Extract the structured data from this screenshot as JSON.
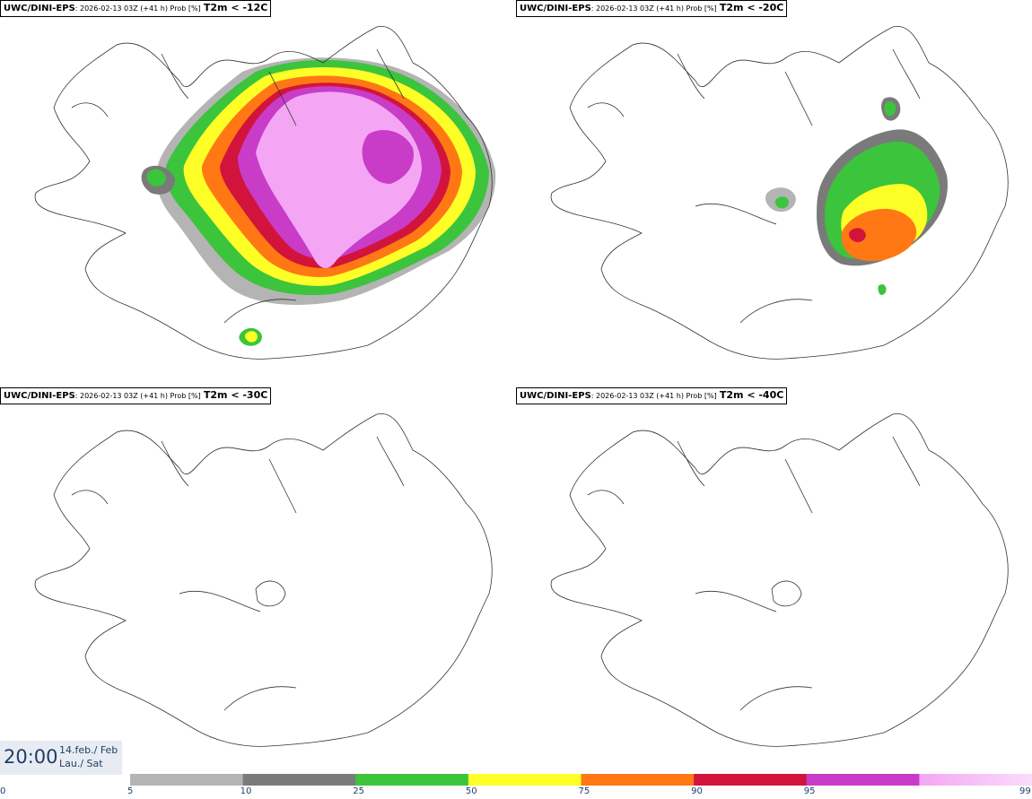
{
  "panels": [
    {
      "model": "UWC/DINI-EPS",
      "desc": ": 2026-02-13 03Z (+41 h) Prob [%]",
      "threshold": "T2m < -12C"
    },
    {
      "model": "UWC/DINI-EPS",
      "desc": ": 2026-02-13 03Z (+41 h) Prob [%]",
      "threshold": "T2m < -20C"
    },
    {
      "model": "UWC/DINI-EPS",
      "desc": ": 2026-02-13 03Z (+41 h) Prob [%]",
      "threshold": "T2m < -30C"
    },
    {
      "model": "UWC/DINI-EPS",
      "desc": ": 2026-02-13 03Z (+41 h) Prob [%]",
      "threshold": "T2m < -40C"
    }
  ],
  "time": {
    "clock": "20:00",
    "date_line1": "14.feb./ Feb",
    "date_line2": "Lau./ Sat"
  },
  "colorbar": {
    "ticks": [
      "0",
      "5",
      "10",
      "25",
      "50",
      "75",
      "90",
      "95",
      "99"
    ],
    "colors": [
      "#b4b4b4",
      "#7a7a7a",
      "#3cc43c",
      "#ffff28",
      "#ff7814",
      "#d2143c",
      "#c83cc8",
      "#f4a6f4"
    ],
    "gradient_end": "#fadcfa"
  },
  "colors": {
    "gray10": "#b4b4b4",
    "gray25": "#7a7a7a",
    "green": "#3cc43c",
    "yellow": "#ffff28",
    "orange": "#ff7814",
    "red": "#d2143c",
    "purple": "#c83cc8",
    "pink": "#f4a6f4"
  }
}
